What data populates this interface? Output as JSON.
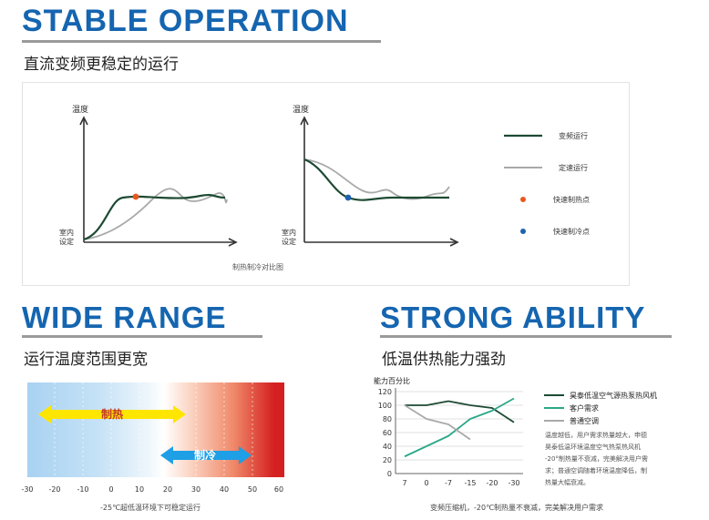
{
  "stable": {
    "title": "STABLE OPERATION",
    "subtitle": "直流变频更稳定的运行",
    "chart1": {
      "y_label": "温度",
      "start_label_1": "室内",
      "start_label_2": "设定"
    },
    "chart2": {
      "y_label": "温度",
      "start_label_1": "室内",
      "start_label_2": "设定"
    },
    "legend": [
      {
        "label": "变频运行",
        "color": "#1d4a33"
      },
      {
        "label": "定速运行",
        "color": "#a9a9a9"
      },
      {
        "label": "快速制热点",
        "color": "#e8571f"
      },
      {
        "label": "快速制冷点",
        "color": "#1f63b0"
      }
    ],
    "caption": "制热制冷对比图"
  },
  "wide": {
    "title": "WIDE RANGE",
    "subtitle": "运行温度范围更宽",
    "heat_label": "制热",
    "cool_label": "制冷",
    "ticks": [
      "-30",
      "-20",
      "-10",
      "0",
      "10",
      "20",
      "30",
      "40",
      "50",
      "60"
    ],
    "caption": "-25℃超低温环境下可稳定运行",
    "colors": {
      "heat_arrow": "#ffe600",
      "cool_arrow": "#1e9fe6",
      "hot": "#d42020",
      "cold": "#a8d2f2"
    }
  },
  "strong": {
    "title": "STRONG ABILITY",
    "subtitle": "低温供热能力强劲",
    "chart_data": {
      "type": "line",
      "ylabel": "能力百分比",
      "ylim": [
        0,
        120
      ],
      "yticks": [
        "120",
        "100",
        "80",
        "60",
        "40",
        "20",
        "0"
      ],
      "categories": [
        "7",
        "0",
        "-7",
        "-15",
        "-20",
        "-30"
      ],
      "series": [
        {
          "name": "昊泰低温空气源热泵热风机",
          "color": "#1d4a33",
          "values": [
            100,
            100,
            106,
            100,
            96,
            75
          ]
        },
        {
          "name": "客户需求",
          "color": "#2aa889",
          "values": [
            25,
            40,
            55,
            80,
            92,
            110
          ]
        },
        {
          "name": "普通空调",
          "color": "#a9a9a9",
          "values": [
            100,
            80,
            72,
            50,
            null,
            null
          ]
        }
      ],
      "grid": true,
      "legend_position": "right"
    },
    "note_lines": [
      "温度越低，用户需求热量越大，申德",
      "昊泰低温环境温度空气热泵热风机",
      "-20°制热量不衰减，完美解决用户需",
      "求；普通空调随着环境温度降低，制",
      "热量大幅衰减。"
    ],
    "caption": "变频压缩机，-20℃制热量不衰减，完美解决用户需求"
  }
}
